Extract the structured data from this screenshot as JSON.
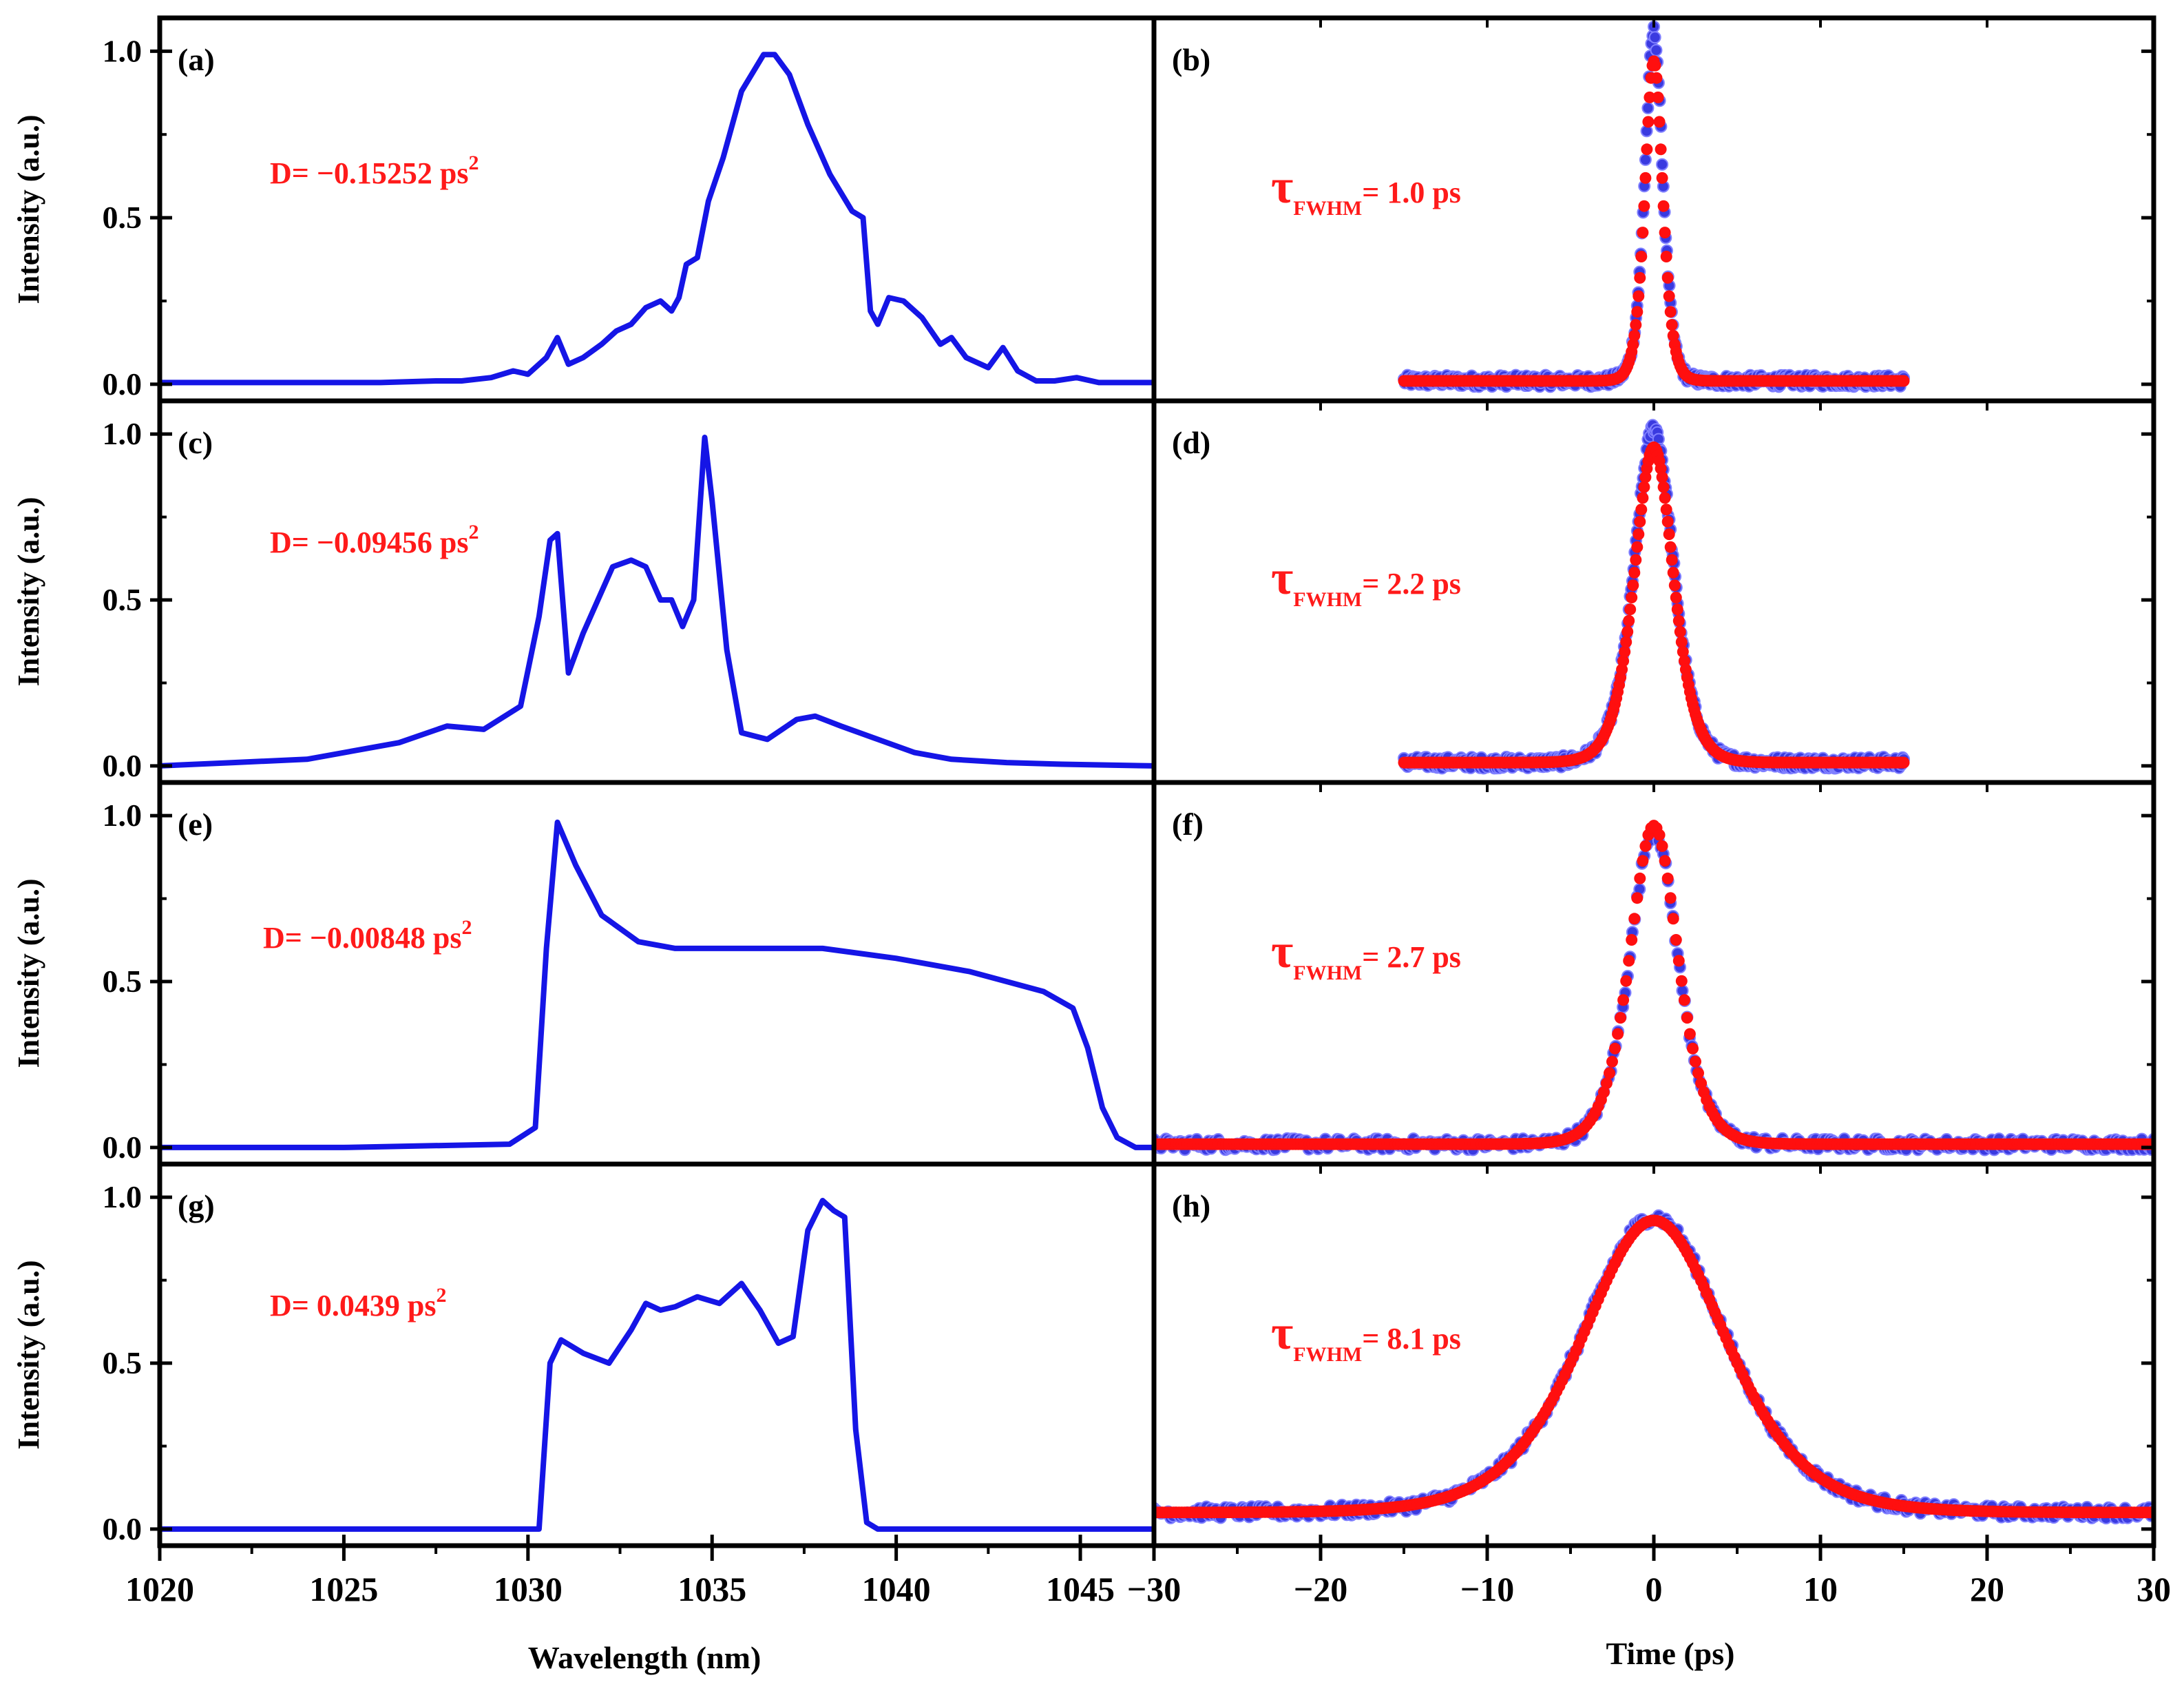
{
  "chart_data": {
    "type": "line",
    "colors": {
      "spectrum": "#1515e6",
      "measured": "#3a3ae0",
      "fit": "#ff0f0f",
      "annotation": "#ff1a1a",
      "axis": "#000000"
    },
    "shared": {
      "left_xlabel": "Wavelength (nm)",
      "right_xlabel": "Time (ps)",
      "left_ylabel": "Intensity (a.u.)",
      "left_xlim": [
        1020,
        1047
      ],
      "right_xlim": [
        -30,
        30
      ],
      "ylim": [
        -0.05,
        1.1
      ],
      "left_xticks": [
        "1020",
        "1025",
        "1030",
        "1035",
        "1040",
        "1045"
      ],
      "left_xtick_values": [
        1020,
        1025,
        1030,
        1035,
        1040,
        1045
      ],
      "right_xticks": [
        "−30",
        "−20",
        "−10",
        "0",
        "10",
        "20",
        "30"
      ],
      "right_xtick_values": [
        -30,
        -20,
        -10,
        0,
        10,
        20,
        30
      ],
      "yticks": [
        "0.0",
        "0.5",
        "1.0"
      ],
      "ytick_values": [
        0,
        0.5,
        1.0
      ]
    },
    "panels": [
      {
        "label": "(a)",
        "kind": "spectrum",
        "row": 0,
        "annotation": {
          "prefix": "D= −0.15252 ps",
          "sup": "2"
        },
        "x": [
          1020,
          1022,
          1024,
          1026,
          1027.5,
          1028.2,
          1029,
          1029.6,
          1030,
          1030.5,
          1030.8,
          1031.1,
          1031.5,
          1032,
          1032.4,
          1032.8,
          1033.2,
          1033.6,
          1033.9,
          1034.1,
          1034.3,
          1034.6,
          1034.9,
          1035.3,
          1035.8,
          1036.4,
          1036.7,
          1037.1,
          1037.6,
          1038.2,
          1038.8,
          1039.1,
          1039.3,
          1039.5,
          1039.8,
          1040.2,
          1040.7,
          1041.2,
          1041.5,
          1041.9,
          1042.5,
          1042.9,
          1043.3,
          1043.8,
          1044.3,
          1044.9,
          1045.5,
          1047
        ],
        "y": [
          0.005,
          0.005,
          0.005,
          0.005,
          0.01,
          0.01,
          0.02,
          0.04,
          0.03,
          0.08,
          0.14,
          0.06,
          0.08,
          0.12,
          0.16,
          0.18,
          0.23,
          0.25,
          0.22,
          0.26,
          0.36,
          0.38,
          0.55,
          0.68,
          0.88,
          0.99,
          0.99,
          0.93,
          0.78,
          0.63,
          0.52,
          0.5,
          0.22,
          0.18,
          0.26,
          0.25,
          0.2,
          0.12,
          0.14,
          0.08,
          0.05,
          0.11,
          0.04,
          0.01,
          0.01,
          0.02,
          0.005,
          0.005
        ]
      },
      {
        "label": "(b)",
        "kind": "autocorrelation",
        "row": 0,
        "fwhm": 1.0,
        "annotation": {
          "prefix": "τ",
          "sub": "FWHM",
          "suffix": "= 1.0 ps"
        },
        "x_range": [
          -15,
          15
        ],
        "peak": 0.97,
        "peak_measured": 1.06
      },
      {
        "label": "(c)",
        "kind": "spectrum",
        "row": 1,
        "annotation": {
          "prefix": "D= −0.09456 ps",
          "sup": "2"
        },
        "x": [
          1020,
          1022,
          1024,
          1025.5,
          1026.5,
          1027.8,
          1028.8,
          1029.8,
          1030.3,
          1030.6,
          1030.8,
          1031.1,
          1031.5,
          1031.9,
          1032.3,
          1032.8,
          1033.2,
          1033.6,
          1033.9,
          1034.2,
          1034.5,
          1034.8,
          1035,
          1035.4,
          1035.8,
          1036.5,
          1037.3,
          1037.8,
          1038.5,
          1039.5,
          1040.5,
          1041.5,
          1043,
          1044.5,
          1047
        ],
        "y": [
          0.0,
          0.01,
          0.02,
          0.05,
          0.07,
          0.12,
          0.11,
          0.18,
          0.45,
          0.68,
          0.7,
          0.28,
          0.4,
          0.5,
          0.6,
          0.62,
          0.6,
          0.5,
          0.5,
          0.42,
          0.5,
          0.99,
          0.8,
          0.35,
          0.1,
          0.08,
          0.14,
          0.15,
          0.12,
          0.08,
          0.04,
          0.02,
          0.01,
          0.005,
          0.0
        ]
      },
      {
        "label": "(d)",
        "kind": "autocorrelation",
        "row": 1,
        "fwhm": 2.2,
        "annotation": {
          "prefix": "τ",
          "sub": "FWHM",
          "suffix": "= 2.2 ps"
        },
        "x_range": [
          -15,
          15
        ],
        "peak": 0.96,
        "peak_measured": 1.02
      },
      {
        "label": "(e)",
        "kind": "spectrum",
        "row": 2,
        "annotation": {
          "prefix": "D= −0.00848 ps",
          "sup": "2"
        },
        "x": [
          1020,
          1025,
          1029.5,
          1030.2,
          1030.5,
          1030.8,
          1031.3,
          1032,
          1033,
          1034,
          1036,
          1038,
          1040,
          1042,
          1044,
          1044.8,
          1045.2,
          1045.6,
          1046,
          1046.5,
          1047
        ],
        "y": [
          0.0,
          0.0,
          0.01,
          0.06,
          0.6,
          0.98,
          0.85,
          0.7,
          0.62,
          0.6,
          0.6,
          0.6,
          0.57,
          0.53,
          0.47,
          0.42,
          0.3,
          0.12,
          0.03,
          0.0,
          0.0
        ]
      },
      {
        "label": "(f)",
        "kind": "autocorrelation",
        "row": 2,
        "fwhm": 2.7,
        "annotation": {
          "prefix": "τ",
          "sub": "FWHM",
          "suffix": "= 2.7 ps"
        },
        "x_range": [
          -30,
          30
        ],
        "peak": 0.97,
        "peak_measured": 0.96
      },
      {
        "label": "(g)",
        "kind": "spectrum",
        "row": 3,
        "annotation": {
          "prefix": "D= 0.0439 ps",
          "sup": "2"
        },
        "x": [
          1020,
          1025,
          1030.3,
          1030.6,
          1030.9,
          1031.5,
          1032.2,
          1032.8,
          1033.2,
          1033.6,
          1034,
          1034.6,
          1035.2,
          1035.8,
          1036.3,
          1036.8,
          1037.2,
          1037.6,
          1038,
          1038.3,
          1038.6,
          1038.9,
          1039.2,
          1039.5,
          1047
        ],
        "y": [
          0.0,
          0.0,
          0.0,
          0.5,
          0.57,
          0.53,
          0.5,
          0.6,
          0.68,
          0.66,
          0.67,
          0.7,
          0.68,
          0.74,
          0.66,
          0.56,
          0.58,
          0.9,
          0.99,
          0.96,
          0.94,
          0.3,
          0.02,
          0.0,
          0.0
        ]
      },
      {
        "label": "(h)",
        "kind": "autocorrelation",
        "row": 3,
        "fwhm": 8.1,
        "annotation": {
          "prefix": "τ",
          "sub": "FWHM",
          "suffix": "= 8.1 ps"
        },
        "x_range": [
          -30,
          30
        ],
        "peak": 0.93,
        "peak_measured": 0.94
      }
    ]
  }
}
